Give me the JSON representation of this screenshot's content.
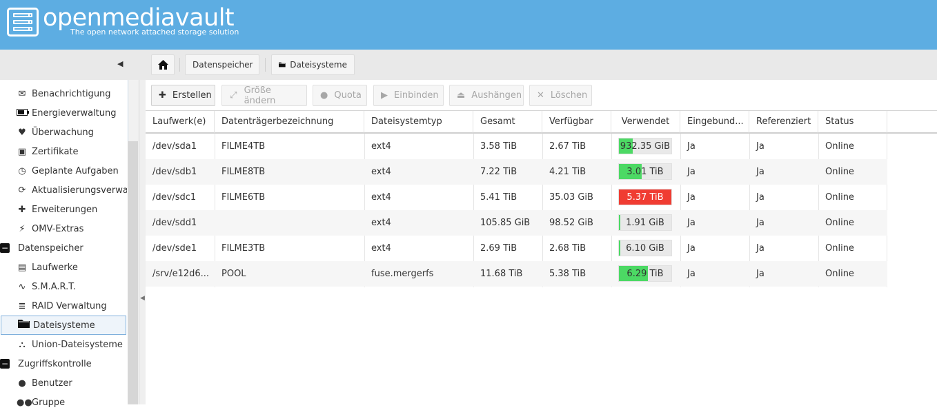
{
  "header": {
    "brand": "openmediavault",
    "tagline": "The open network attached storage solution",
    "bg_color": "#5dade2"
  },
  "breadcrumb": {
    "home_icon": "home-icon",
    "items": [
      "Datenspeicher",
      "Dateisysteme"
    ],
    "folder_icon": "folder-icon"
  },
  "sidebar": {
    "items": [
      {
        "label": "Benachrichtigung",
        "icon": "envelope-icon",
        "type": "sub"
      },
      {
        "label": "Energieverwaltung",
        "icon": "battery-icon",
        "type": "sub"
      },
      {
        "label": "Überwachung",
        "icon": "heartbeat-icon",
        "type": "sub"
      },
      {
        "label": "Zertifikate",
        "icon": "certificate-icon",
        "type": "sub"
      },
      {
        "label": "Geplante Aufgaben",
        "icon": "calendar-clock-icon",
        "type": "sub"
      },
      {
        "label": "Aktualisierungsverwalt",
        "icon": "refresh-icon",
        "type": "sub"
      },
      {
        "label": "Erweiterungen",
        "icon": "puzzle-icon",
        "type": "sub"
      },
      {
        "label": "OMV-Extras",
        "icon": "plug-icon",
        "type": "sub"
      },
      {
        "label": "Datenspeicher",
        "icon": "collapse-icon",
        "type": "group"
      },
      {
        "label": "Laufwerke",
        "icon": "harddisk-icon",
        "type": "sub"
      },
      {
        "label": "S.M.A.R.T.",
        "icon": "pulse-icon",
        "type": "sub"
      },
      {
        "label": "RAID Verwaltung",
        "icon": "database-icon",
        "type": "sub"
      },
      {
        "label": "Dateisysteme",
        "icon": "folder-icon",
        "type": "sub",
        "active": true
      },
      {
        "label": "Union-Dateisysteme",
        "icon": "sitemap-icon",
        "type": "sub"
      },
      {
        "label": "Zugriffskontrolle",
        "icon": "collapse-icon",
        "type": "group"
      },
      {
        "label": "Benutzer",
        "icon": "user-icon",
        "type": "sub"
      },
      {
        "label": "Gruppe",
        "icon": "users-icon",
        "type": "sub"
      }
    ]
  },
  "toolbar": {
    "buttons": [
      {
        "label": "Erstellen",
        "icon": "plus-icon",
        "enabled": true
      },
      {
        "label": "Größe ändern",
        "icon": "resize-icon",
        "enabled": false
      },
      {
        "label": "Quota",
        "icon": "users-icon",
        "enabled": false
      },
      {
        "label": "Einbinden",
        "icon": "play-icon",
        "enabled": false
      },
      {
        "label": "Aushängen",
        "icon": "eject-icon",
        "enabled": false
      },
      {
        "label": "Löschen",
        "icon": "times-icon",
        "enabled": false
      }
    ]
  },
  "grid": {
    "columns": [
      "Laufwerk(e)",
      "Datenträgerbezeichnung",
      "Dateisystemtyp",
      "Gesamt",
      "Verfügbar",
      "Verwendet",
      "Eingebund...",
      "Referenziert",
      "Status"
    ],
    "rows": [
      {
        "device": "/dev/sda1",
        "label": "FILME4TB",
        "type": "ext4",
        "total": "3.58 TiB",
        "available": "2.67 TiB",
        "used_text": "932.35 GiB",
        "used_fraction": 0.26,
        "used_color": "#4cd964",
        "mounted": "Ja",
        "referenced": "Ja",
        "status": "Online"
      },
      {
        "device": "/dev/sdb1",
        "label": "FILME8TB",
        "type": "ext4",
        "total": "7.22 TiB",
        "available": "4.21 TiB",
        "used_text": "3.01 TiB",
        "used_fraction": 0.42,
        "used_color": "#4cd964",
        "mounted": "Ja",
        "referenced": "Ja",
        "status": "Online"
      },
      {
        "device": "/dev/sdc1",
        "label": "FILME6TB",
        "type": "ext4",
        "total": "5.41 TiB",
        "available": "35.03 GiB",
        "used_text": "5.37 TiB",
        "used_fraction": 0.99,
        "used_color": "#f03c32",
        "mounted": "Ja",
        "referenced": "Ja",
        "status": "Online"
      },
      {
        "device": "/dev/sdd1",
        "label": "",
        "type": "ext4",
        "total": "105.85 GiB",
        "available": "98.52 GiB",
        "used_text": "1.91 GiB",
        "used_fraction": 0.02,
        "used_color": "#4cd964",
        "mounted": "Ja",
        "referenced": "Ja",
        "status": "Online"
      },
      {
        "device": "/dev/sde1",
        "label": "FILME3TB",
        "type": "ext4",
        "total": "2.69 TiB",
        "available": "2.68 TiB",
        "used_text": "6.10 GiB",
        "used_fraction": 0.002,
        "used_color": "#4cd964",
        "mounted": "Ja",
        "referenced": "Ja",
        "status": "Online"
      },
      {
        "device": "/srv/e12d6...",
        "label": "POOL",
        "type": "fuse.mergerfs",
        "total": "11.68 TiB",
        "available": "5.38 TiB",
        "used_text": "6.29 TiB",
        "used_fraction": 0.54,
        "used_color": "#4cd964",
        "mounted": "Ja",
        "referenced": "Ja",
        "status": "Online"
      }
    ]
  }
}
